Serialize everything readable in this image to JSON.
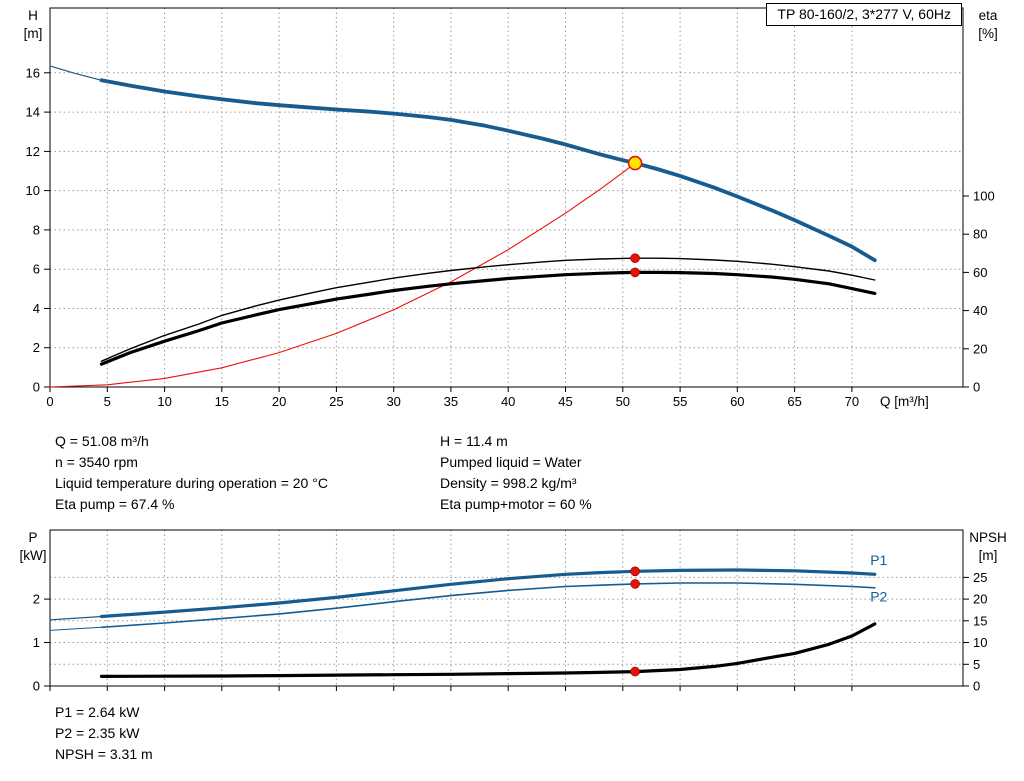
{
  "title_box": "TP 80-160/2, 3*277 V, 60Hz",
  "colors": {
    "blue": "#175c90",
    "red": "#e81109",
    "black": "#000000",
    "yellow": "#ffe800",
    "grid": "#9a9a9a"
  },
  "info_top_left": [
    "Q = 51.08 m³/h",
    "n = 3540 rpm",
    "Liquid temperature during operation = 20 °C",
    "Eta pump = 67.4 %"
  ],
  "info_top_right": [
    "H = 11.4 m",
    "Pumped liquid = Water",
    "Density = 998.2 kg/m³",
    "Eta pump+motor = 60 %"
  ],
  "info_bottom": [
    "P1 = 2.64 kW",
    "P2 = 2.35 kW",
    "NPSH = 3.31 m"
  ],
  "chart_data": [
    {
      "type": "line",
      "title": "TP 80-160/2, 3*277 V, 60Hz",
      "x_label": "Q [m³/h]",
      "y_left_label": [
        "H",
        "[m]"
      ],
      "y_right_label": [
        "eta",
        "[%]"
      ],
      "x_ticks": [
        0,
        5,
        10,
        15,
        20,
        25,
        30,
        35,
        40,
        45,
        50,
        55,
        60,
        65,
        70
      ],
      "y_left_ticks": [
        0,
        2,
        4,
        6,
        8,
        10,
        12,
        14,
        16
      ],
      "y_right_ticks": [
        0,
        20,
        40,
        60,
        80,
        100
      ],
      "x_max": 79.7,
      "y_left_max": 19.3,
      "y_right_max": 198.4,
      "h_grid_axis": "left",
      "show_x_tick_labels": true,
      "grid": true,
      "legend_position": "none",
      "series": [
        {
          "name": "head-min-flow",
          "axis": "left",
          "color": "blue",
          "width": 1.2,
          "points": [
            [
              0,
              16.35
            ],
            [
              2,
              16.0
            ],
            [
              4.5,
              15.62
            ]
          ]
        },
        {
          "name": "head",
          "axis": "left",
          "color": "blue",
          "width": 3.8,
          "points": [
            [
              4.5,
              15.62
            ],
            [
              7,
              15.35
            ],
            [
              10,
              15.05
            ],
            [
              13,
              14.8
            ],
            [
              15,
              14.65
            ],
            [
              18,
              14.45
            ],
            [
              20,
              14.35
            ],
            [
              23,
              14.22
            ],
            [
              25,
              14.13
            ],
            [
              28,
              14.02
            ],
            [
              30,
              13.92
            ],
            [
              33,
              13.75
            ],
            [
              35,
              13.6
            ],
            [
              38,
              13.3
            ],
            [
              40,
              13.05
            ],
            [
              43,
              12.65
            ],
            [
              45,
              12.35
            ],
            [
              48,
              11.85
            ],
            [
              50,
              11.55
            ],
            [
              51.08,
              11.4
            ],
            [
              53,
              11.1
            ],
            [
              55,
              10.75
            ],
            [
              58,
              10.15
            ],
            [
              60,
              9.7
            ],
            [
              63,
              9.0
            ],
            [
              65,
              8.5
            ],
            [
              68,
              7.7
            ],
            [
              70,
              7.15
            ],
            [
              72,
              6.45
            ]
          ]
        },
        {
          "name": "system-curve",
          "axis": "left",
          "color": "red",
          "width": 1.1,
          "points": [
            [
              0,
              0
            ],
            [
              5,
              0.11
            ],
            [
              10,
              0.44
            ],
            [
              15,
              0.98
            ],
            [
              20,
              1.75
            ],
            [
              25,
              2.73
            ],
            [
              30,
              3.93
            ],
            [
              35,
              5.35
            ],
            [
              40,
              6.99
            ],
            [
              45,
              8.85
            ],
            [
              48,
              10.06
            ],
            [
              50,
              10.92
            ],
            [
              51.08,
              11.4
            ]
          ]
        },
        {
          "name": "eta-pump",
          "axis": "right",
          "color": "black",
          "width": 1.4,
          "points": [
            [
              4.5,
              13.5
            ],
            [
              7,
              20
            ],
            [
              10,
              27
            ],
            [
              13,
              33
            ],
            [
              15,
              37.5
            ],
            [
              18,
              42.5
            ],
            [
              20,
              45.5
            ],
            [
              23,
              49.5
            ],
            [
              25,
              52
            ],
            [
              28,
              55
            ],
            [
              30,
              57
            ],
            [
              33,
              59.5
            ],
            [
              35,
              61
            ],
            [
              38,
              62.9
            ],
            [
              40,
              64
            ],
            [
              43,
              65.5
            ],
            [
              45,
              66.3
            ],
            [
              48,
              67
            ],
            [
              50,
              67.3
            ],
            [
              51.08,
              67.4
            ],
            [
              53,
              67.4
            ],
            [
              55,
              67.2
            ],
            [
              58,
              66.5
            ],
            [
              60,
              65.8
            ],
            [
              63,
              64.3
            ],
            [
              65,
              63
            ],
            [
              68,
              60.7
            ],
            [
              70,
              58.5
            ],
            [
              72,
              56
            ]
          ]
        },
        {
          "name": "eta-pump-motor",
          "axis": "right",
          "color": "black",
          "width": 3.2,
          "points": [
            [
              4.5,
              12
            ],
            [
              7,
              18
            ],
            [
              10,
              24
            ],
            [
              13,
              29.5
            ],
            [
              15,
              33.5
            ],
            [
              18,
              37.8
            ],
            [
              20,
              40.5
            ],
            [
              23,
              43.8
            ],
            [
              25,
              46
            ],
            [
              28,
              48.7
            ],
            [
              30,
              50.5
            ],
            [
              33,
              52.7
            ],
            [
              35,
              54
            ],
            [
              38,
              55.7
            ],
            [
              40,
              56.8
            ],
            [
              43,
              58
            ],
            [
              45,
              58.8
            ],
            [
              48,
              59.5
            ],
            [
              50,
              59.9
            ],
            [
              51.08,
              60
            ],
            [
              53,
              60
            ],
            [
              55,
              59.9
            ],
            [
              58,
              59.4
            ],
            [
              60,
              58.8
            ],
            [
              63,
              57.6
            ],
            [
              65,
              56.4
            ],
            [
              68,
              54
            ],
            [
              70,
              51.5
            ],
            [
              72,
              49
            ]
          ]
        }
      ],
      "markers": [
        {
          "type": "dot",
          "axis": "right",
          "x": 51.08,
          "y": 67.4
        },
        {
          "type": "dot",
          "axis": "right",
          "x": 51.08,
          "y": 60
        },
        {
          "type": "duty",
          "axis": "left",
          "x": 51.08,
          "y": 11.4
        }
      ]
    },
    {
      "type": "line",
      "title": "",
      "x_label": "",
      "y_left_label": [
        "P",
        "[kW]"
      ],
      "y_right_label": [
        "NPSH",
        "[m]"
      ],
      "x_ticks": [
        0,
        5,
        10,
        15,
        20,
        25,
        30,
        35,
        40,
        45,
        50,
        55,
        60,
        65,
        70
      ],
      "y_left_ticks": [
        0,
        1,
        2
      ],
      "y_right_ticks": [
        0,
        5,
        10,
        15,
        20,
        25
      ],
      "x_max": 79.7,
      "y_left_max": 3.59,
      "y_right_max": 35.9,
      "h_grid_axis": "right",
      "show_x_tick_labels": false,
      "grid": true,
      "legend_position": "none",
      "series": [
        {
          "name": "p1-min-flow",
          "axis": "left",
          "color": "blue",
          "width": 1.2,
          "points": [
            [
              0,
              1.52
            ],
            [
              4.5,
              1.6
            ]
          ]
        },
        {
          "name": "p1",
          "axis": "left",
          "color": "blue",
          "width": 3.2,
          "points": [
            [
              4.5,
              1.6
            ],
            [
              10,
              1.7
            ],
            [
              15,
              1.8
            ],
            [
              20,
              1.91
            ],
            [
              25,
              2.04
            ],
            [
              30,
              2.19
            ],
            [
              35,
              2.34
            ],
            [
              40,
              2.47
            ],
            [
              45,
              2.57
            ],
            [
              48,
              2.61
            ],
            [
              51.08,
              2.64
            ],
            [
              55,
              2.66
            ],
            [
              60,
              2.67
            ],
            [
              65,
              2.65
            ],
            [
              70,
              2.6
            ],
            [
              72,
              2.57
            ]
          ]
        },
        {
          "name": "p2-min-flow",
          "axis": "left",
          "color": "blue",
          "width": 1.0,
          "points": [
            [
              0,
              1.28
            ],
            [
              4.5,
              1.35
            ]
          ]
        },
        {
          "name": "p2",
          "axis": "left",
          "color": "blue",
          "width": 1.6,
          "points": [
            [
              4.5,
              1.35
            ],
            [
              10,
              1.45
            ],
            [
              15,
              1.55
            ],
            [
              20,
              1.66
            ],
            [
              25,
              1.79
            ],
            [
              30,
              1.94
            ],
            [
              35,
              2.08
            ],
            [
              40,
              2.2
            ],
            [
              45,
              2.29
            ],
            [
              48,
              2.32
            ],
            [
              51.08,
              2.35
            ],
            [
              55,
              2.37
            ],
            [
              60,
              2.37
            ],
            [
              65,
              2.34
            ],
            [
              70,
              2.29
            ],
            [
              72,
              2.26
            ]
          ]
        },
        {
          "name": "npsh",
          "axis": "right",
          "color": "black",
          "width": 3.2,
          "points": [
            [
              4.5,
              2.2
            ],
            [
              10,
              2.25
            ],
            [
              15,
              2.3
            ],
            [
              20,
              2.4
            ],
            [
              25,
              2.5
            ],
            [
              30,
              2.6
            ],
            [
              35,
              2.7
            ],
            [
              40,
              2.85
            ],
            [
              45,
              3.0
            ],
            [
              48,
              3.12
            ],
            [
              51.08,
              3.31
            ],
            [
              55,
              3.8
            ],
            [
              58,
              4.5
            ],
            [
              60,
              5.2
            ],
            [
              63,
              6.6
            ],
            [
              65,
              7.5
            ],
            [
              68,
              9.6
            ],
            [
              70,
              11.5
            ],
            [
              72,
              14.3
            ]
          ]
        }
      ],
      "markers": [
        {
          "type": "dot",
          "axis": "left",
          "x": 51.08,
          "y": 2.64
        },
        {
          "type": "dot",
          "axis": "left",
          "x": 51.08,
          "y": 2.35
        },
        {
          "type": "dot",
          "axis": "right",
          "x": 51.08,
          "y": 3.31
        }
      ],
      "series_labels": [
        {
          "text": "P1",
          "axis": "left",
          "x": 71.6,
          "y": 2.78
        },
        {
          "text": "P2",
          "axis": "left",
          "x": 71.6,
          "y": 1.95
        }
      ]
    }
  ]
}
